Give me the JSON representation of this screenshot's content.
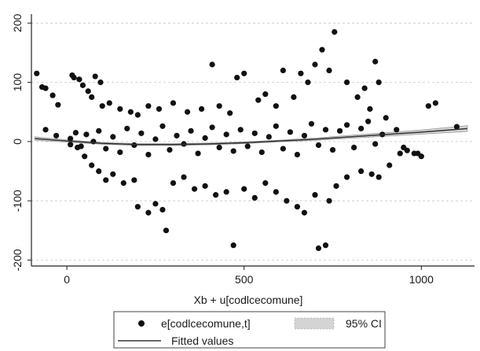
{
  "chart_data": {
    "type": "scatter",
    "title": "",
    "xlabel": "Xb + u[codlcecomune]",
    "ylabel": "",
    "xlim": [
      -100,
      1150
    ],
    "ylim": [
      -210,
      215
    ],
    "x_ticks": [
      0,
      500,
      1000
    ],
    "x_tick_labels": [
      "0",
      "500",
      "1000"
    ],
    "y_ticks": [
      -200,
      -100,
      0,
      100,
      200
    ],
    "y_tick_labels": [
      "-200",
      "-100",
      "0",
      "100",
      "200"
    ],
    "grid": "horizontal dashed",
    "legend": {
      "position": "bottom",
      "items": [
        {
          "label": "e[codlcecomune,t]",
          "kind": "points"
        },
        {
          "label": "95% CI",
          "kind": "band"
        },
        {
          "label": "Fitted values",
          "kind": "line"
        }
      ]
    },
    "series": [
      {
        "name": "e[codlcecomune,t]",
        "kind": "scatter",
        "points": [
          [
            -85,
            115
          ],
          [
            -70,
            92
          ],
          [
            -60,
            90
          ],
          [
            -40,
            78
          ],
          [
            -25,
            62
          ],
          [
            15,
            112
          ],
          [
            20,
            108
          ],
          [
            35,
            105
          ],
          [
            45,
            95
          ],
          [
            60,
            85
          ],
          [
            70,
            75
          ],
          [
            80,
            110
          ],
          [
            95,
            100
          ],
          [
            100,
            60
          ],
          [
            120,
            65
          ],
          [
            150,
            55
          ],
          [
            180,
            50
          ],
          [
            200,
            45
          ],
          [
            230,
            60
          ],
          [
            260,
            55
          ],
          [
            300,
            65
          ],
          [
            340,
            50
          ],
          [
            380,
            55
          ],
          [
            410,
            130
          ],
          [
            430,
            60
          ],
          [
            460,
            48
          ],
          [
            480,
            108
          ],
          [
            500,
            115
          ],
          [
            540,
            70
          ],
          [
            560,
            80
          ],
          [
            590,
            60
          ],
          [
            610,
            120
          ],
          [
            640,
            75
          ],
          [
            660,
            115
          ],
          [
            680,
            100
          ],
          [
            700,
            130
          ],
          [
            720,
            155
          ],
          [
            740,
            120
          ],
          [
            755,
            185
          ],
          [
            790,
            100
          ],
          [
            820,
            75
          ],
          [
            840,
            90
          ],
          [
            855,
            55
          ],
          [
            870,
            135
          ],
          [
            880,
            100
          ],
          [
            900,
            40
          ],
          [
            930,
            20
          ],
          [
            950,
            -10
          ],
          [
            980,
            -20
          ],
          [
            1000,
            -25
          ],
          [
            1020,
            60
          ],
          [
            1040,
            65
          ],
          [
            1100,
            25
          ],
          [
            30,
            -10
          ],
          [
            50,
            -25
          ],
          [
            70,
            -40
          ],
          [
            90,
            -50
          ],
          [
            110,
            -65
          ],
          [
            130,
            -55
          ],
          [
            160,
            -70
          ],
          [
            190,
            -65
          ],
          [
            200,
            -110
          ],
          [
            230,
            -120
          ],
          [
            250,
            -105
          ],
          [
            270,
            -115
          ],
          [
            280,
            -150
          ],
          [
            300,
            -70
          ],
          [
            330,
            -60
          ],
          [
            360,
            -80
          ],
          [
            390,
            -75
          ],
          [
            420,
            -90
          ],
          [
            450,
            -85
          ],
          [
            470,
            -175
          ],
          [
            500,
            -80
          ],
          [
            530,
            -95
          ],
          [
            560,
            -70
          ],
          [
            590,
            -85
          ],
          [
            620,
            -100
          ],
          [
            650,
            -110
          ],
          [
            670,
            -120
          ],
          [
            700,
            -90
          ],
          [
            710,
            -180
          ],
          [
            730,
            -175
          ],
          [
            740,
            -100
          ],
          [
            760,
            -75
          ],
          [
            790,
            -60
          ],
          [
            830,
            -50
          ],
          [
            860,
            -55
          ],
          [
            880,
            -60
          ],
          [
            910,
            -40
          ],
          [
            940,
            -20
          ],
          [
            960,
            -15
          ],
          [
            990,
            -20
          ],
          [
            -60,
            20
          ],
          [
            -30,
            10
          ],
          [
            10,
            5
          ],
          [
            10,
            -5
          ],
          [
            25,
            15
          ],
          [
            40,
            -8
          ],
          [
            55,
            12
          ],
          [
            75,
            0
          ],
          [
            90,
            18
          ],
          [
            110,
            -12
          ],
          [
            130,
            8
          ],
          [
            150,
            -18
          ],
          [
            170,
            22
          ],
          [
            190,
            -6
          ],
          [
            210,
            14
          ],
          [
            230,
            -22
          ],
          [
            250,
            4
          ],
          [
            270,
            26
          ],
          [
            290,
            -14
          ],
          [
            310,
            10
          ],
          [
            330,
            -4
          ],
          [
            350,
            18
          ],
          [
            370,
            -20
          ],
          [
            390,
            6
          ],
          [
            410,
            24
          ],
          [
            430,
            -10
          ],
          [
            450,
            12
          ],
          [
            470,
            -16
          ],
          [
            490,
            20
          ],
          [
            510,
            -8
          ],
          [
            530,
            14
          ],
          [
            550,
            -18
          ],
          [
            570,
            8
          ],
          [
            590,
            26
          ],
          [
            610,
            -12
          ],
          [
            630,
            16
          ],
          [
            650,
            -22
          ],
          [
            670,
            10
          ],
          [
            690,
            30
          ],
          [
            710,
            -6
          ],
          [
            730,
            20
          ],
          [
            750,
            -14
          ],
          [
            770,
            18
          ],
          [
            790,
            28
          ],
          [
            810,
            -10
          ],
          [
            830,
            22
          ],
          [
            850,
            34
          ],
          [
            870,
            -4
          ],
          [
            890,
            12
          ]
        ]
      },
      {
        "name": "Fitted values",
        "kind": "line",
        "x": [
          -90,
          0,
          100,
          200,
          300,
          400,
          500,
          600,
          700,
          800,
          900,
          1000,
          1130
        ],
        "y": [
          5,
          1,
          -3,
          -5,
          -5,
          -4,
          -2,
          1,
          4,
          8,
          12,
          16,
          22
        ]
      },
      {
        "name": "95% CI",
        "kind": "band",
        "x": [
          -90,
          0,
          100,
          200,
          300,
          400,
          500,
          600,
          700,
          800,
          900,
          1000,
          1130
        ],
        "lower": [
          2,
          -1,
          -4.5,
          -6.5,
          -6.5,
          -5.5,
          -3.5,
          -0.5,
          2,
          5.5,
          9,
          12.5,
          17
        ],
        "upper": [
          8,
          3,
          -1.5,
          -3.5,
          -3.5,
          -2.5,
          -0.5,
          2.5,
          6,
          10.5,
          15,
          19.5,
          27
        ]
      }
    ]
  }
}
